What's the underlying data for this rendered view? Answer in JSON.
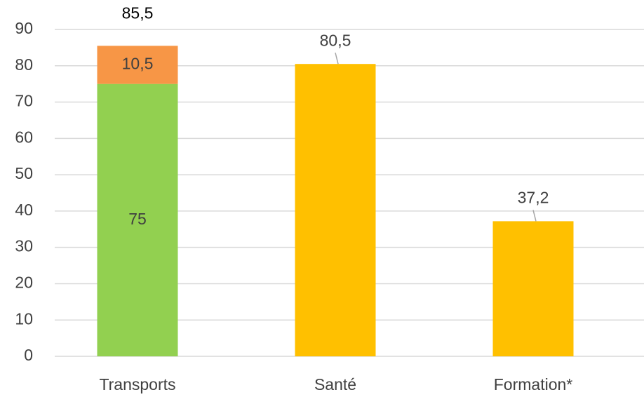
{
  "chart_data": {
    "type": "stacked_bar",
    "categories": [
      "Transports",
      "Santé",
      "Formation*"
    ],
    "series": [
      {
        "color": "#92d050",
        "values": [
          75,
          null,
          null
        ],
        "value_labels": [
          "75",
          null,
          null
        ]
      },
      {
        "color": "#f79646",
        "values": [
          10.5,
          null,
          null
        ],
        "value_labels": [
          "10,5",
          null,
          null
        ]
      },
      {
        "color": "#ffc000",
        "values": [
          null,
          80.5,
          37.2
        ],
        "value_labels": [
          null,
          "80,5",
          "37,2"
        ]
      }
    ],
    "annotations": [
      {
        "text": "85,5",
        "category": "Transports"
      }
    ],
    "ylim": [
      0,
      90
    ],
    "yticks": [
      0,
      10,
      20,
      30,
      40,
      50,
      60,
      70,
      80,
      90
    ],
    "grid": true
  }
}
